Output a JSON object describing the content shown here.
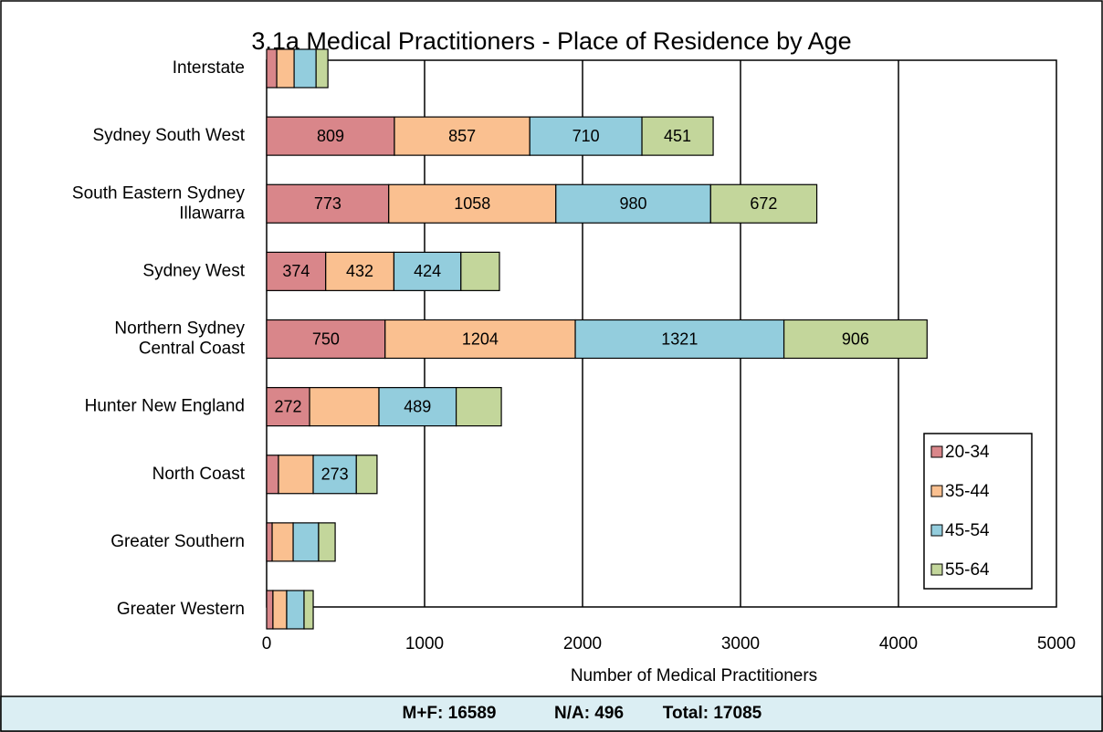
{
  "chart_data": {
    "type": "stacked-barh",
    "title": "3.1a Medical Practitioners - Place of Residence by Age",
    "x_label": "Number of Medical Practitioners",
    "categories": [
      "Interstate",
      "Sydney South West",
      "South Eastern Sydney\nIllawarra",
      "Sydney West",
      "Northern Sydney\nCentral Coast",
      "Hunter New England",
      "North Coast",
      "Greater Southern",
      "Greater Western"
    ],
    "series": [
      {
        "name": "20-34",
        "color": "#d9868a",
        "values": [
          64,
          809,
          773,
          374,
          750,
          272,
          75,
          35,
          40
        ],
        "labeled": [
          false,
          true,
          true,
          true,
          true,
          true,
          false,
          false,
          false
        ]
      },
      {
        "name": "35-44",
        "color": "#fac090",
        "values": [
          110,
          857,
          1058,
          432,
          1204,
          439,
          220,
          133,
          87
        ],
        "labeled": [
          false,
          true,
          true,
          true,
          true,
          false,
          false,
          false,
          false
        ]
      },
      {
        "name": "45-54",
        "color": "#93cddd",
        "values": [
          139,
          710,
          980,
          424,
          1321,
          489,
          273,
          161,
          110
        ],
        "labeled": [
          false,
          true,
          true,
          true,
          true,
          true,
          true,
          false,
          false
        ]
      },
      {
        "name": "55-64",
        "color": "#c3d69b",
        "values": [
          75,
          451,
          672,
          244,
          906,
          286,
          131,
          105,
          58
        ],
        "labeled": [
          false,
          true,
          true,
          false,
          true,
          false,
          false,
          false,
          false
        ]
      }
    ],
    "xlim": [
      0,
      5000
    ],
    "xticks": [
      0,
      1000,
      2000,
      3000,
      4000,
      5000
    ],
    "grid": true,
    "legend": "lower right",
    "footer": [
      "M+F: 16589",
      "N/A: 496",
      "Total:  17085"
    ]
  }
}
